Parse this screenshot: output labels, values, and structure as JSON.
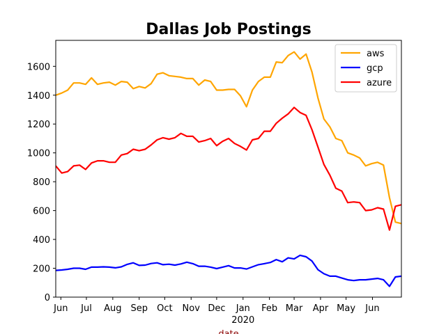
{
  "chart_data": {
    "type": "line",
    "title": "Dallas Job Postings",
    "xlabel": "date",
    "xlabel_color": "#8b0000",
    "ylabel": "",
    "x_range": [
      "2019-05-26",
      "2020-07-05"
    ],
    "ylim": [
      0,
      1780
    ],
    "yticks": [
      0,
      200,
      400,
      600,
      800,
      1000,
      1200,
      1400,
      1600
    ],
    "xticks": [
      {
        "date": "2019-06-01",
        "label": "Jun"
      },
      {
        "date": "2019-07-01",
        "label": "Jul"
      },
      {
        "date": "2019-08-01",
        "label": "Aug"
      },
      {
        "date": "2019-09-01",
        "label": "Sep"
      },
      {
        "date": "2019-10-01",
        "label": "Oct"
      },
      {
        "date": "2019-11-01",
        "label": "Nov"
      },
      {
        "date": "2019-12-01",
        "label": "Dec"
      },
      {
        "date": "2020-01-01",
        "label": "Jan",
        "sublabel": "2020"
      },
      {
        "date": "2020-02-01",
        "label": "Feb"
      },
      {
        "date": "2020-03-01",
        "label": "Mar"
      },
      {
        "date": "2020-04-01",
        "label": "Apr"
      },
      {
        "date": "2020-05-01",
        "label": "May"
      },
      {
        "date": "2020-06-01",
        "label": "Jun"
      }
    ],
    "legend_position": "upper right",
    "grid": false,
    "dates": [
      "2019-05-26",
      "2019-06-02",
      "2019-06-09",
      "2019-06-16",
      "2019-06-23",
      "2019-06-30",
      "2019-07-07",
      "2019-07-14",
      "2019-07-21",
      "2019-07-28",
      "2019-08-04",
      "2019-08-11",
      "2019-08-18",
      "2019-08-25",
      "2019-09-01",
      "2019-09-08",
      "2019-09-15",
      "2019-09-22",
      "2019-09-29",
      "2019-10-06",
      "2019-10-13",
      "2019-10-20",
      "2019-10-27",
      "2019-11-03",
      "2019-11-10",
      "2019-11-17",
      "2019-11-24",
      "2019-12-01",
      "2019-12-08",
      "2019-12-15",
      "2019-12-22",
      "2019-12-29",
      "2020-01-05",
      "2020-01-12",
      "2020-01-19",
      "2020-01-26",
      "2020-02-02",
      "2020-02-09",
      "2020-02-16",
      "2020-02-23",
      "2020-03-01",
      "2020-03-08",
      "2020-03-15",
      "2020-03-22",
      "2020-03-29",
      "2020-04-05",
      "2020-04-12",
      "2020-04-19",
      "2020-04-26",
      "2020-05-03",
      "2020-05-10",
      "2020-05-17",
      "2020-05-24",
      "2020-05-31",
      "2020-06-07",
      "2020-06-14",
      "2020-06-21",
      "2020-06-28",
      "2020-07-05"
    ],
    "series": [
      {
        "name": "aws",
        "color": "#ffa500",
        "values": [
          1400,
          1415,
          1435,
          1485,
          1485,
          1475,
          1520,
          1475,
          1485,
          1490,
          1470,
          1495,
          1490,
          1445,
          1460,
          1450,
          1480,
          1545,
          1555,
          1535,
          1530,
          1525,
          1515,
          1515,
          1470,
          1505,
          1495,
          1435,
          1435,
          1440,
          1440,
          1395,
          1320,
          1435,
          1495,
          1525,
          1525,
          1630,
          1625,
          1675,
          1700,
          1650,
          1685,
          1560,
          1380,
          1235,
          1180,
          1100,
          1085,
          1000,
          985,
          965,
          910,
          925,
          935,
          915,
          690,
          520,
          510
        ]
      },
      {
        "name": "gcp",
        "color": "#0000ff",
        "values": [
          185,
          188,
          193,
          200,
          200,
          193,
          208,
          208,
          210,
          208,
          203,
          210,
          227,
          238,
          220,
          222,
          233,
          238,
          225,
          228,
          222,
          230,
          242,
          232,
          214,
          214,
          208,
          198,
          208,
          218,
          202,
          202,
          195,
          210,
          225,
          232,
          240,
          260,
          245,
          272,
          265,
          290,
          280,
          250,
          190,
          162,
          145,
          145,
          132,
          120,
          115,
          120,
          120,
          125,
          130,
          120,
          75,
          140,
          145
        ]
      },
      {
        "name": "azure",
        "color": "#ff0000",
        "values": [
          910,
          860,
          870,
          910,
          915,
          885,
          930,
          945,
          945,
          935,
          935,
          985,
          995,
          1025,
          1015,
          1025,
          1055,
          1090,
          1105,
          1095,
          1105,
          1135,
          1115,
          1115,
          1075,
          1085,
          1100,
          1050,
          1080,
          1100,
          1065,
          1045,
          1020,
          1090,
          1100,
          1150,
          1150,
          1205,
          1240,
          1270,
          1315,
          1280,
          1260,
          1160,
          1040,
          920,
          845,
          755,
          735,
          655,
          660,
          655,
          600,
          605,
          620,
          610,
          465,
          630,
          640
        ]
      }
    ]
  }
}
